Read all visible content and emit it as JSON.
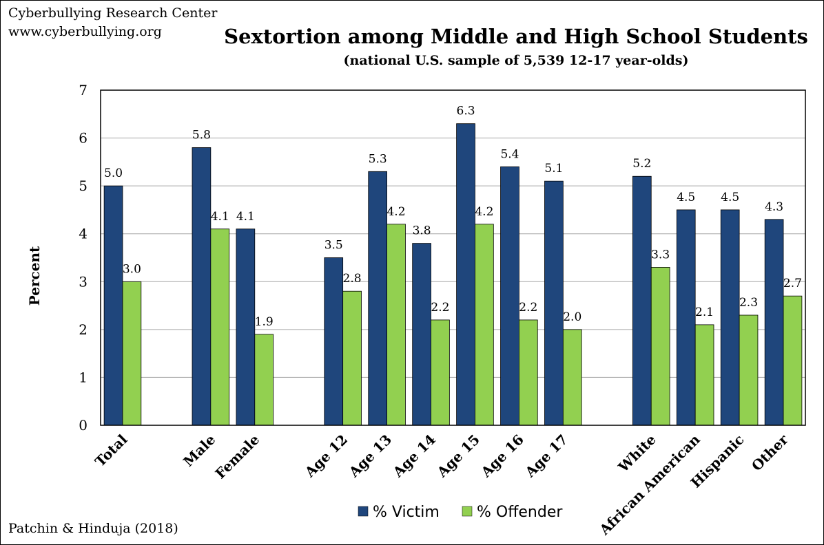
{
  "header": {
    "org_name": "Cyberbullying Research Center",
    "org_url": "www.cyberbullying.org"
  },
  "footer": {
    "citation": "Patchin & Hinduja (2018)"
  },
  "colors": {
    "victim": "#1f467c",
    "offender": "#92d050",
    "grid": "#a6a6a6"
  },
  "chart_data": {
    "type": "bar",
    "title": "Sextortion among Middle and High School Students",
    "subtitle": "(national U.S. sample of 5,539 12-17 year-olds)",
    "xlabel": "",
    "ylabel": "Percent",
    "ylim": [
      0,
      7
    ],
    "yticks": [
      0,
      1,
      2,
      3,
      4,
      5,
      6,
      7
    ],
    "grid": true,
    "legend_position": "bottom",
    "categories": [
      "Total",
      "Male",
      "Female",
      "Age 12",
      "Age 13",
      "Age 14",
      "Age 15",
      "Age 16",
      "Age 17",
      "White",
      "African American",
      "Hispanic",
      "Other"
    ],
    "series": [
      {
        "name": "% Victim",
        "values": [
          5.0,
          5.8,
          4.1,
          3.5,
          5.3,
          3.8,
          6.3,
          5.4,
          5.1,
          5.2,
          4.5,
          4.5,
          4.3
        ],
        "labels": [
          "5.0",
          "5.8",
          "4.1",
          "3.5",
          "5.3",
          "3.8",
          "6.3",
          "5.4",
          "5.1",
          "5.2",
          "4.5",
          "4.5",
          "4.3"
        ]
      },
      {
        "name": "% Offender",
        "values": [
          3.0,
          4.1,
          1.9,
          2.8,
          4.2,
          2.2,
          4.2,
          2.2,
          2.0,
          3.3,
          2.1,
          2.3,
          2.7
        ],
        "labels": [
          "3.0",
          "4.1",
          "1.9",
          "2.8",
          "4.2",
          "2.2",
          "4.2",
          "2.2",
          "2.0",
          "3.3",
          "2.1",
          "2.3",
          "2.7"
        ]
      }
    ]
  }
}
